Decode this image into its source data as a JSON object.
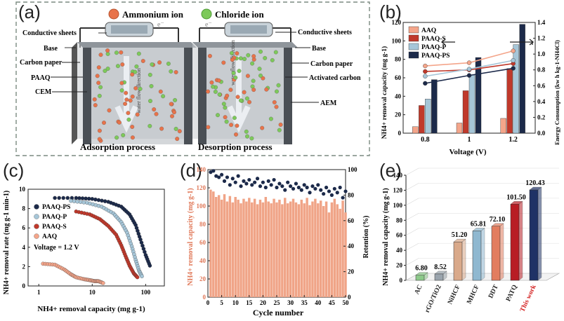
{
  "panels": {
    "a": "(a)",
    "b": "(b)",
    "c": "(c)",
    "d": "(d)",
    "e": "(e)"
  },
  "schematic": {
    "legend_ammonium": "Ammonium ion",
    "legend_chloride": "Chloride ion",
    "electron": "e⁻",
    "left_labels": [
      "Conductive sheets",
      "Base",
      "Carbon paper",
      "PAAQ",
      "CEM"
    ],
    "right_labels": [
      "Conductive sheets",
      "Base",
      "Carbon paper",
      "Activated carbon",
      "AEM"
    ],
    "flow_text": "water flow direction",
    "adsorption": "Adsorption process",
    "desorption": "Desorption process",
    "colors": {
      "ammonium": "#e8734a",
      "chloride": "#7dc95a"
    }
  },
  "chart_data": [
    {
      "panel": "b",
      "type": "bar",
      "categories": [
        "0.8",
        "1",
        "1.2"
      ],
      "xlabel": "Voltage (V)",
      "ylabel": "NH4+ removal capacity (mg g-1)",
      "y2label": "Energy Consumption (kw h kg-1-NH4Cl)",
      "ylim": [
        0,
        120
      ],
      "y2lim": [
        0,
        1.4
      ],
      "yticks": [
        "0",
        "20",
        "40",
        "60",
        "80",
        "100",
        "120"
      ],
      "y2ticks": [
        "0.0",
        "0.2",
        "0.4",
        "0.6",
        "0.8",
        "1.0",
        "1.2",
        "1.4"
      ],
      "series": [
        {
          "name": "AAQ",
          "color": "#f4a58a",
          "values": [
            7,
            11,
            16
          ],
          "energy": [
            0.85,
            0.89,
            1.04
          ]
        },
        {
          "name": "PAAQ-S",
          "color": "#c0392b",
          "values": [
            30,
            46,
            70
          ],
          "energy": [
            0.78,
            0.8,
            0.88
          ]
        },
        {
          "name": "PAAQ-P",
          "color": "#a6c6d8",
          "values": [
            37,
            63,
            96
          ],
          "energy": [
            0.72,
            0.81,
            0.92
          ]
        },
        {
          "name": "PAAQ-PS",
          "color": "#1c2a4a",
          "values": [
            58,
            82,
            118
          ],
          "energy": [
            0.63,
            0.73,
            0.82
          ]
        }
      ]
    },
    {
      "panel": "c",
      "type": "scatter",
      "xlabel": "NH4+ removal capacity (mg g-1)",
      "ylabel": "NH4+ removal rate (mg g-1 min-1)",
      "xscale": "log",
      "xticks": [
        "1",
        "10",
        "100"
      ],
      "yticks": [
        "0",
        "2",
        "4",
        "6",
        "8",
        "10"
      ],
      "annotation": "Voltage = 1.2 V",
      "series": [
        {
          "name": "PAAQ-PS",
          "color": "#1c2a4a",
          "points": [
            [
              2,
              9.1
            ],
            [
              5,
              9.1
            ],
            [
              10,
              9.0
            ],
            [
              20,
              8.7
            ],
            [
              35,
              8.2
            ],
            [
              50,
              7.4
            ],
            [
              65,
              6.3
            ],
            [
              80,
              4.8
            ],
            [
              100,
              3.2
            ],
            [
              120,
              2.1
            ]
          ]
        },
        {
          "name": "PAAQ-P",
          "color": "#a6c6d8",
          "points": [
            [
              4,
              8.8
            ],
            [
              8,
              8.6
            ],
            [
              15,
              8.2
            ],
            [
              25,
              7.5
            ],
            [
              35,
              6.6
            ],
            [
              45,
              5.5
            ],
            [
              55,
              4.1
            ],
            [
              65,
              2.7
            ],
            [
              75,
              1.6
            ],
            [
              85,
              1.0
            ]
          ]
        },
        {
          "name": "PAAQ-S",
          "color": "#c0392b",
          "points": [
            [
              5,
              7.7
            ],
            [
              9,
              7.4
            ],
            [
              14,
              6.9
            ],
            [
              20,
              6.2
            ],
            [
              28,
              5.3
            ],
            [
              35,
              4.2
            ],
            [
              42,
              3.1
            ],
            [
              50,
              2.1
            ],
            [
              60,
              1.3
            ],
            [
              70,
              0.9
            ]
          ]
        },
        {
          "name": "AAQ",
          "color": "#f4a58a",
          "points": [
            [
              1.2,
              2.3
            ],
            [
              2,
              2.2
            ],
            [
              3,
              1.7
            ],
            [
              4,
              1.2
            ],
            [
              5,
              0.9
            ],
            [
              7,
              0.7
            ],
            [
              9,
              0.6
            ],
            [
              11,
              0.5
            ],
            [
              13,
              0.5
            ],
            [
              16,
              0.3
            ]
          ]
        }
      ]
    },
    {
      "panel": "d",
      "type": "bar",
      "xlabel": "Cycle number",
      "ylabel": "NH4+ removal capacity (mg g-1)",
      "y2label": "Retention (%)",
      "ylim": [
        0,
        140
      ],
      "y2lim": [
        0,
        100
      ],
      "xticks": [
        "0",
        "5",
        "10",
        "15",
        "20",
        "25",
        "30",
        "35",
        "40",
        "45",
        "50"
      ],
      "yticks": [
        "0",
        "20",
        "40",
        "60",
        "80",
        "100",
        "120",
        "140"
      ],
      "y2ticks": [
        "0",
        "20",
        "40",
        "60",
        "80",
        "100"
      ],
      "bar_color": "#f0a487",
      "dot_color": "#1c2a4a",
      "capacity": [
        118,
        116,
        110,
        112,
        107,
        113,
        105,
        111,
        104,
        110,
        107,
        103,
        108,
        105,
        109,
        104,
        108,
        102,
        107,
        104,
        110,
        105,
        103,
        108,
        104,
        107,
        102,
        109,
        103,
        105,
        108,
        104,
        102,
        107,
        103,
        109,
        101,
        105,
        108,
        103,
        106,
        100,
        105,
        93,
        104,
        108,
        102,
        97,
        106,
        93
      ],
      "retention": [
        98,
        99,
        95,
        94,
        96,
        91,
        94,
        88,
        93,
        90,
        95,
        87,
        91,
        89,
        92,
        88,
        90,
        93,
        87,
        90,
        86,
        91,
        88,
        92,
        86,
        89,
        87,
        84,
        90,
        87,
        85,
        89,
        86,
        84,
        88,
        86,
        82,
        87,
        85,
        88,
        84,
        81,
        86,
        83,
        80,
        85,
        82,
        86,
        78,
        83
      ]
    },
    {
      "panel": "e",
      "type": "bar",
      "ylabel": "NH4+ removal capacity (mg g-1)",
      "ylim": [
        0,
        140
      ],
      "yticks": [
        "0",
        "20",
        "40",
        "60",
        "80",
        "100",
        "120",
        "140"
      ],
      "categories": [
        "AC",
        "rGO/TiO2",
        "NiHCF",
        "MHCF",
        "DDT",
        "PATQ",
        "This work"
      ],
      "values": [
        6.8,
        8.52,
        51.2,
        65.81,
        72.1,
        101.5,
        120.43
      ],
      "labels": [
        "6.80",
        "8.52",
        "51.20",
        "65.81",
        "72.10",
        "101.50",
        "120.43"
      ],
      "colors": [
        "#8dc98a",
        "#9aa4ad",
        "#d9a98a",
        "#8fb8d0",
        "#e27d5f",
        "#b81d24",
        "#1f3266"
      ],
      "highlight_color": "#d42020"
    }
  ]
}
